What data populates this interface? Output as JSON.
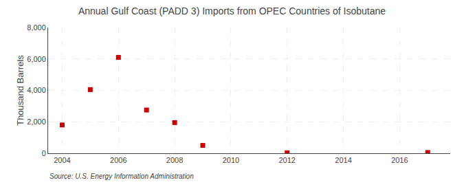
{
  "chart_data": {
    "type": "scatter",
    "title": "Annual Gulf Coast (PADD 3) Imports from OPEC Countries of Isobutane",
    "ylabel": "Thousand Barrels",
    "annotations": [
      "Source: U.S. Energy Information Administration"
    ],
    "x": [
      2004,
      2005,
      2006,
      2007,
      2008,
      2009,
      2012,
      2017
    ],
    "values": [
      1800,
      4050,
      6100,
      2750,
      1950,
      500,
      30,
      50
    ],
    "color": "#cc0000",
    "marker": "square",
    "xlim": [
      2003.5,
      2017.8
    ],
    "ylim": [
      0,
      8000
    ],
    "xticks": [
      2004,
      2006,
      2008,
      2010,
      2012,
      2014,
      2016
    ],
    "yticks": [
      0,
      {
        "value": 2000,
        "label": "2,000"
      },
      {
        "value": 4000,
        "label": "4,000"
      },
      {
        "value": 6000,
        "label": "6,000"
      },
      {
        "value": 8000,
        "label": "8,000"
      }
    ],
    "grid": true
  }
}
